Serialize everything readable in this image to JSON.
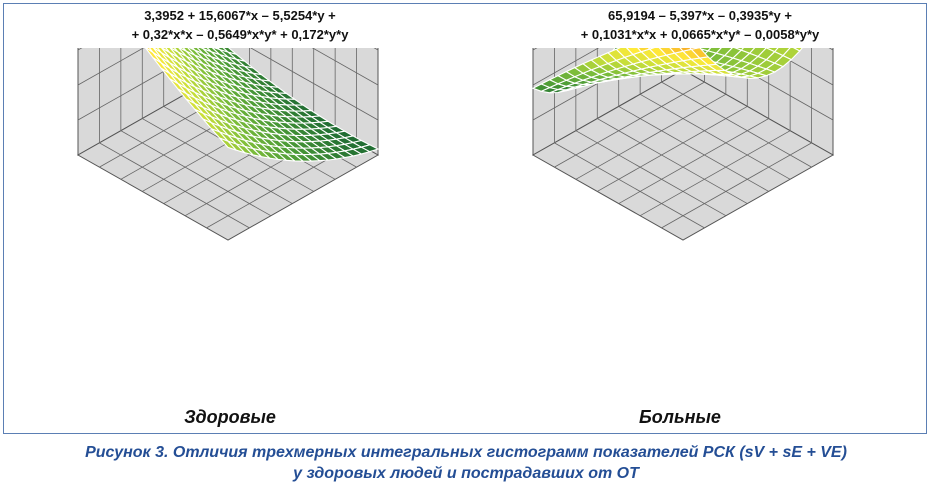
{
  "chart_data": [
    {
      "type": "surface",
      "name": "Здоровые",
      "formula_line1": "3,3952 + 15,6067*x – 5,5254*y +",
      "formula_line2": "+ 0,32*x*x – 0,5649*x*y* + 0,172*y*y",
      "coefficients": {
        "c": 3.3952,
        "x": 15.6067,
        "y": -5.5254,
        "xx": 0.32,
        "xy": -0.5649,
        "yy": 0.172
      },
      "grid": true,
      "colormap": [
        "#1e6b32",
        "#4a9a36",
        "#7cbd3a",
        "#c6de3a",
        "#ffea3a",
        "#f5a224",
        "#d63a1f"
      ]
    },
    {
      "type": "surface",
      "name": "Больные",
      "formula_line1": "65,9194 – 5,397*x – 0,3935*y +",
      "formula_line2": "+ 0,1031*x*x + 0,0665*x*y* – 0,0058*y*y",
      "coefficients": {
        "c": 65.9194,
        "x": -5.397,
        "y": -0.3935,
        "xx": 0.1031,
        "xy": 0.0665,
        "yy": -0.0058
      },
      "grid": true,
      "colormap": [
        "#1e6b32",
        "#4a9a36",
        "#7cbd3a",
        "#c6de3a",
        "#ffea3a",
        "#f5a224",
        "#d63a1f"
      ]
    }
  ],
  "caption": {
    "line1": "Рисунок 3. Отличия трехмерных интегральных гистограмм показателей РСК (sV + sE + VE)",
    "line2": "у здоровых людей и пострадавших от ОТ"
  }
}
